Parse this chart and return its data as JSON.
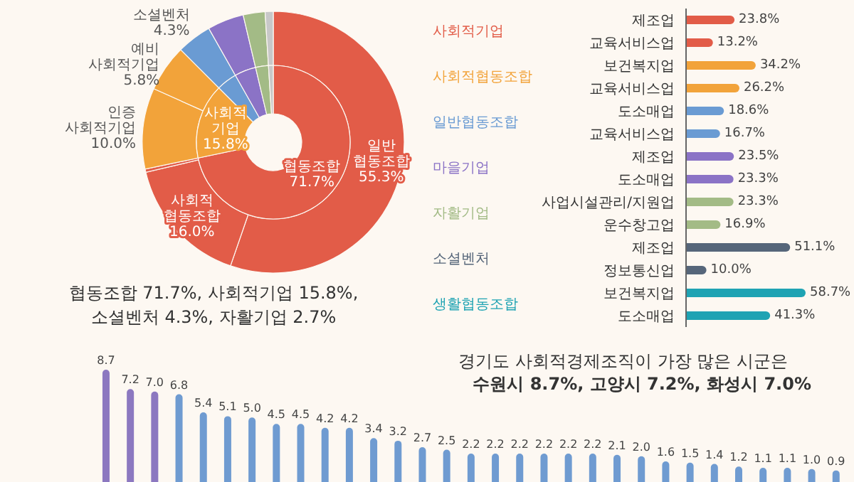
{
  "chart_data": [
    {
      "type": "donut",
      "categories": [
        "협동조합",
        "사회적 기업",
        null,
        null,
        null,
        null
      ],
      "values": [
        71.7,
        15.8,
        4.3,
        4.5,
        2.7,
        1.0
      ],
      "colors": [
        "#e25c48",
        "#f2a33a",
        "#6a9bd3",
        "#8b73c6",
        "#a3bb86",
        "#c8c8c8"
      ],
      "value_labels": [
        "71.7%",
        "15.8%",
        null,
        null,
        null,
        null
      ],
      "annotations": [
        "협동조합 71.7%, 사회적기업 15.8%,",
        "소셜벤처 4.3%, 자활기업 2.7%"
      ]
    },
    {
      "type": "donut",
      "categories": [
        "일반 협동조합",
        "사회적 협동조합",
        null,
        "인증 사회적기업",
        "예비 사회적기업",
        "소셜벤처",
        null,
        null,
        null
      ],
      "values": [
        55.3,
        16.0,
        0.4,
        10.0,
        5.8,
        4.3,
        4.5,
        2.7,
        1.0
      ],
      "colors": [
        "#e25c48",
        "#e25c48",
        "#e25c48",
        "#f2a33a",
        "#f2a33a",
        "#6a9bd3",
        "#8b73c6",
        "#a3bb86",
        "#c8c8c8"
      ],
      "value_labels": [
        "55.3%",
        "16.0%",
        null,
        "10.0%",
        "5.8%",
        "4.3%",
        null,
        null,
        null
      ]
    },
    {
      "type": "bar",
      "orientation": "horizontal",
      "categories": [
        "제조업",
        "교육서비스업",
        "보건복지업",
        "교육서비스업",
        "도소매업",
        "교육서비스업",
        "제조업",
        "도소매업",
        "사업시설관리/지원업",
        "운수창고업",
        "제조업",
        "정보통신업",
        "보건복지업",
        "도소매업"
      ],
      "values": [
        23.8,
        13.2,
        34.2,
        26.2,
        18.6,
        16.7,
        23.5,
        23.3,
        23.3,
        16.9,
        51.1,
        10.0,
        58.7,
        41.3
      ],
      "colors": [
        "#e25c48",
        "#e25c48",
        "#f2a33a",
        "#f2a33a",
        "#6a9bd3",
        "#6a9bd3",
        "#8b73c6",
        "#8b73c6",
        "#a3bb86",
        "#a3bb86",
        "#56667a",
        "#56667a",
        "#1fa3b3",
        "#1fa3b3"
      ],
      "value_labels": [
        "23.8%",
        "13.2%",
        "34.2%",
        "26.2%",
        "18.6%",
        "16.7%",
        "23.5%",
        "23.3%",
        "23.3%",
        "16.9%",
        "51.1%",
        "10.0%",
        "58.7%",
        "41.3%"
      ],
      "annotations": [
        "사회적기업",
        "사회적협동조합",
        "일반협동조합",
        "마을기업",
        "자활기업",
        "소셜벤처",
        "생활협동조합"
      ]
    },
    {
      "type": "bar",
      "title": "경기도 사회적경제조직이 가장 많은 시군은",
      "subtitle": "수원시 8.7%, 고양시 7.2%, 화성시 7.0%",
      "categories": [
        null,
        null,
        null,
        null,
        null,
        null,
        null,
        null,
        null,
        null,
        null,
        null,
        null,
        null,
        null,
        null,
        null,
        null,
        null,
        null,
        null,
        null,
        null,
        null,
        null,
        null,
        null,
        null,
        null,
        null,
        null
      ],
      "values": [
        8.7,
        7.2,
        7.0,
        6.8,
        5.4,
        5.1,
        5.0,
        4.5,
        4.5,
        4.2,
        4.2,
        3.4,
        3.2,
        2.7,
        2.5,
        2.2,
        2.2,
        2.2,
        2.2,
        2.2,
        2.2,
        2.1,
        2.0,
        1.6,
        1.5,
        1.4,
        1.2,
        1.1,
        1.1,
        1.0,
        0.9
      ],
      "colors": [
        "#8c78c0",
        "#8c78c0",
        "#8c78c0",
        "#6f9bd1",
        "#6f9bd1",
        "#6f9bd1",
        "#6f9bd1",
        "#6f9bd1",
        "#6f9bd1",
        "#6f9bd1",
        "#6f9bd1",
        "#6f9bd1",
        "#6f9bd1",
        "#6f9bd1",
        "#6f9bd1",
        "#6f9bd1",
        "#6f9bd1",
        "#6f9bd1",
        "#6f9bd1",
        "#6f9bd1",
        "#6f9bd1",
        "#6f9bd1",
        "#6f9bd1",
        "#6f9bd1",
        "#6f9bd1",
        "#6f9bd1",
        "#6f9bd1",
        "#6f9bd1",
        "#6f9bd1",
        "#6f9bd1",
        "#6f9bd1"
      ],
      "value_labels": [
        "8.7",
        "7.2",
        "7.0",
        "6.8",
        "5.4",
        "5.1",
        "5.0",
        "4.5",
        "4.5",
        "4.2",
        "4.2",
        "3.4",
        "3.2",
        "2.7",
        "2.5",
        "2.2",
        "2.2",
        "2.2",
        "2.2",
        "2.2",
        "2.2",
        "2.1",
        "2.0",
        "1.6",
        "1.5",
        "1.4",
        "1.2",
        "1.1",
        "1.1",
        "1.0",
        "0.9"
      ]
    }
  ]
}
